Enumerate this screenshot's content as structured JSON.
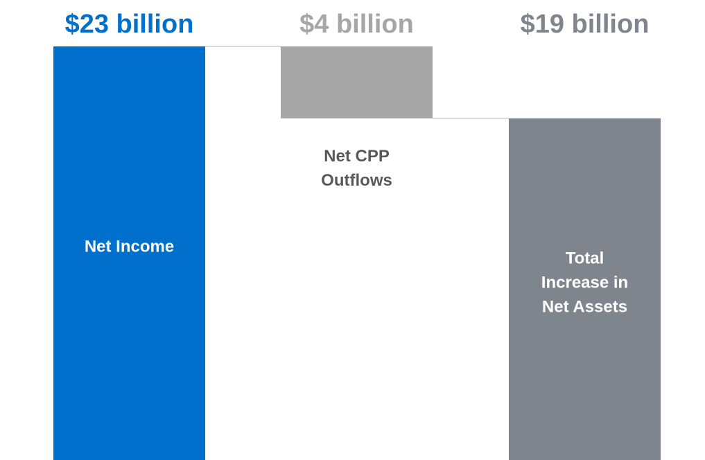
{
  "chart_data": {
    "type": "waterfall",
    "unit": "$ billion",
    "ylim": [
      0,
      23
    ],
    "grid": false,
    "legend": "none",
    "steps": [
      {
        "category": "Net Income",
        "value_label": "$23 billion",
        "kind": "total",
        "start": 0,
        "end": 23,
        "value": 23,
        "color": "#0070CC",
        "value_label_color": "#0070CC",
        "category_label_color": "#FFFFFF",
        "category_position": "inside"
      },
      {
        "category": "Net CPP Outflows",
        "value_label": "$4 billion",
        "kind": "decrease",
        "start": 23,
        "end": 19,
        "value": -4,
        "color": "#A6A6A6",
        "value_label_color": "#A6A6A6",
        "category_label_color": "#595959",
        "category_position": "below"
      },
      {
        "category": "Total Increase in Net Assets",
        "value_label": "$19 billion",
        "kind": "total",
        "start": 0,
        "end": 19,
        "value": 19,
        "color": "#7F858C",
        "value_label_color": "#7F858C",
        "category_label_color": "#FFFFFF",
        "category_position": "inside"
      }
    ],
    "connector_color": "#D9D9D9"
  }
}
